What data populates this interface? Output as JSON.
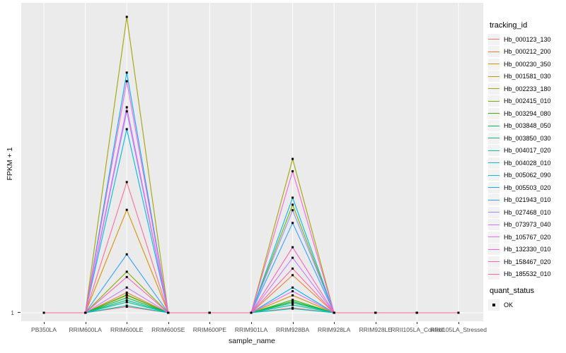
{
  "figure": {
    "background": "#FFFFFF"
  },
  "panel": {
    "background": "#EBEBEB",
    "gridline_color": "#FFFFFF",
    "tick_color": "#333333",
    "tick_label_color": "#4D4D4D"
  },
  "axes": {
    "x_title": "sample_name",
    "y_title": "FPKM + 1",
    "y_tick_labels": [
      "1"
    ]
  },
  "legend": {
    "tracking_title": "tracking_id",
    "quant_title": "quant_status",
    "quant_items": [
      {
        "label": "OK",
        "marker": "black-square"
      }
    ],
    "key_background": "#F2F2F2"
  },
  "chart_data": {
    "type": "line",
    "title": "",
    "xlabel": "sample_name",
    "ylabel": "FPKM + 1",
    "y_scale": "log10",
    "ylim": [
      1,
      1400
    ],
    "grid": "vertical-white-on-grey",
    "legend_position": "right",
    "point_marker": {
      "shape": "square",
      "color": "#000000",
      "size": 3
    },
    "categories": [
      "PB350LA",
      "RRIM600LA",
      "RRIM600LE",
      "RRIM600SE",
      "RRIM600PE",
      "RRIM901LA",
      "RRIM928BA",
      "RRIM928LA",
      "RRIM928LE",
      "RRII105LA_Control",
      "RRII105LA_Stressed"
    ],
    "series": [
      {
        "name": "Hb_000123_130",
        "color": "#F8766D",
        "values": [
          1,
          1,
          1.15,
          1,
          1,
          1,
          1.12,
          1,
          1,
          1,
          1
        ]
      },
      {
        "name": "Hb_000212_200",
        "color": "#EA8331",
        "values": [
          1,
          1,
          1.6,
          1,
          1,
          1,
          2.4,
          1,
          1,
          1,
          1
        ]
      },
      {
        "name": "Hb_000230_350",
        "color": "#D89000",
        "values": [
          1,
          1,
          11,
          1,
          1,
          1,
          1.5,
          1,
          1,
          1,
          1
        ]
      },
      {
        "name": "Hb_001581_030",
        "color": "#C09B00",
        "values": [
          1,
          1,
          1.5,
          1,
          1,
          1,
          1.3,
          1,
          1,
          1,
          1
        ]
      },
      {
        "name": "Hb_002233_180",
        "color": "#A3A500",
        "values": [
          1,
          1,
          985,
          1,
          1,
          1,
          36,
          1,
          1,
          1,
          1
        ]
      },
      {
        "name": "Hb_002415_010",
        "color": "#7CAE00",
        "values": [
          1,
          1,
          2.6,
          1,
          1,
          1,
          12.4,
          1,
          1,
          1,
          1
        ]
      },
      {
        "name": "Hb_003294_080",
        "color": "#39B600",
        "values": [
          1,
          1,
          1.52,
          1,
          1,
          1,
          1.35,
          1,
          1,
          1,
          1
        ]
      },
      {
        "name": "Hb_003848_050",
        "color": "#00BB4E",
        "values": [
          1,
          1,
          1.42,
          1,
          1,
          1,
          1.3,
          1,
          1,
          1,
          1
        ]
      },
      {
        "name": "Hb_003850_030",
        "color": "#00BF7D",
        "values": [
          1,
          1,
          1.34,
          1,
          1,
          1,
          1.26,
          1,
          1,
          1,
          1
        ]
      },
      {
        "name": "Hb_004017_020",
        "color": "#00C1A3",
        "values": [
          1,
          1,
          1.28,
          1,
          1,
          1,
          1.2,
          1,
          1,
          1,
          1
        ]
      },
      {
        "name": "Hb_004028_010",
        "color": "#00BFC4",
        "values": [
          1,
          1,
          1.18,
          1,
          1,
          1,
          1.1,
          1,
          1,
          1,
          1
        ]
      },
      {
        "name": "Hb_005062_090",
        "color": "#00BAE0",
        "values": [
          1,
          1,
          72,
          1,
          1,
          1,
          14.6,
          1,
          1,
          1,
          1
        ]
      },
      {
        "name": "Hb_005503_020",
        "color": "#00B0F6",
        "values": [
          1,
          1,
          269,
          1,
          1,
          1,
          1.8,
          1,
          1,
          1,
          1
        ]
      },
      {
        "name": "Hb_021943_010",
        "color": "#35A2FF",
        "values": [
          1,
          1,
          3.9,
          1,
          1,
          1,
          8.1,
          1,
          1,
          1,
          1
        ]
      },
      {
        "name": "Hb_027468_010",
        "color": "#9590FF",
        "values": [
          1,
          1,
          109,
          1,
          1,
          1,
          10.9,
          1,
          1,
          1,
          1
        ]
      },
      {
        "name": "Hb_073973_040",
        "color": "#C77CFF",
        "values": [
          1,
          1,
          1.8,
          1,
          1,
          1,
          3.6,
          1,
          1,
          1,
          1
        ]
      },
      {
        "name": "Hb_105767_020",
        "color": "#E76BF3",
        "values": [
          1,
          1,
          120,
          1,
          1,
          1,
          1.65,
          1,
          1,
          1,
          1
        ]
      },
      {
        "name": "Hb_132330_010",
        "color": "#FA62DB",
        "values": [
          1,
          1,
          220,
          1,
          1,
          1,
          27,
          1,
          1,
          1,
          1
        ]
      },
      {
        "name": "Hb_158467_020",
        "color": "#FF62BC",
        "values": [
          1,
          1,
          2.3,
          1,
          1,
          1,
          4.6,
          1,
          1,
          1,
          1
        ]
      },
      {
        "name": "Hb_185532_010",
        "color": "#FF6A98",
        "values": [
          1,
          1,
          21,
          1,
          1,
          1,
          2.8,
          1,
          1,
          1,
          1
        ]
      }
    ]
  }
}
